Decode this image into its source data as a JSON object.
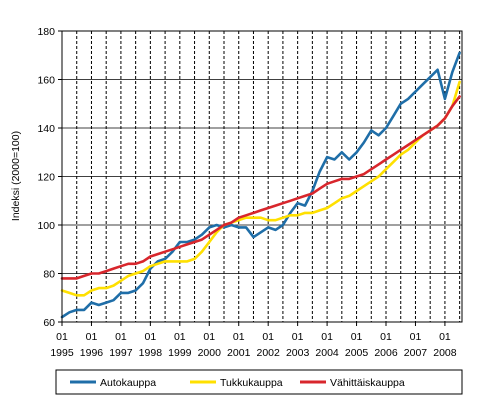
{
  "chart_data": {
    "type": "line",
    "title": "",
    "xlabel": "",
    "ylabel": "Indeksi (2000=100)",
    "ylim": [
      60,
      180
    ],
    "yticks": [
      60,
      80,
      100,
      120,
      140,
      160,
      180
    ],
    "xlim": [
      1995.0,
      2008.58
    ],
    "x_tick_labels": [
      {
        "x": 1995,
        "month": "01",
        "year": "1995"
      },
      {
        "x": 1996,
        "month": "01",
        "year": "1996"
      },
      {
        "x": 1997,
        "month": "01",
        "year": "1997"
      },
      {
        "x": 1998,
        "month": "01",
        "year": "1998"
      },
      {
        "x": 1999,
        "month": "01",
        "year": "1999"
      },
      {
        "x": 2000,
        "month": "01",
        "year": "2000"
      },
      {
        "x": 2001,
        "month": "01",
        "year": "2001"
      },
      {
        "x": 2002,
        "month": "01",
        "year": "2002"
      },
      {
        "x": 2003,
        "month": "01",
        "year": "2003"
      },
      {
        "x": 2004,
        "month": "01",
        "year": "2004"
      },
      {
        "x": 2005,
        "month": "01",
        "year": "2005"
      },
      {
        "x": 2006,
        "month": "01",
        "year": "2006"
      },
      {
        "x": 2007,
        "month": "01",
        "year": "2007"
      },
      {
        "x": 2008,
        "month": "01",
        "year": "2008"
      }
    ],
    "vertical_gridlines": "dashed, one per half-year",
    "horizontal_gridlines": "solid, at each y tick",
    "legend_position": "bottom",
    "series": [
      {
        "name": "Autokauppa",
        "color": "#1f6ea8",
        "x": [
          1995.0,
          1995.25,
          1995.5,
          1995.75,
          1996.0,
          1996.25,
          1996.5,
          1996.75,
          1997.0,
          1997.25,
          1997.5,
          1997.75,
          1998.0,
          1998.25,
          1998.5,
          1998.75,
          1999.0,
          1999.25,
          1999.5,
          1999.75,
          2000.0,
          2000.25,
          2000.5,
          2000.75,
          2001.0,
          2001.25,
          2001.5,
          2001.75,
          2002.0,
          2002.25,
          2002.5,
          2002.75,
          2003.0,
          2003.25,
          2003.5,
          2003.75,
          2004.0,
          2004.25,
          2004.5,
          2004.75,
          2005.0,
          2005.25,
          2005.5,
          2005.75,
          2006.0,
          2006.25,
          2006.5,
          2006.75,
          2007.0,
          2007.25,
          2007.5,
          2007.75,
          2008.0,
          2008.25,
          2008.5
        ],
        "values": [
          62,
          64,
          65,
          65,
          68,
          67,
          68,
          69,
          72,
          72,
          73,
          76,
          82,
          85,
          86,
          89,
          93,
          93,
          94,
          96,
          99,
          100,
          99,
          100,
          99,
          99,
          95,
          97,
          99,
          98,
          100,
          105,
          109,
          108,
          114,
          122,
          128,
          127,
          130,
          127,
          130,
          134,
          139,
          137,
          140,
          145,
          150,
          152,
          155,
          158,
          161,
          164,
          152,
          163,
          171
        ]
      },
      {
        "name": "Tukkukauppa",
        "color": "#ffe000",
        "x": [
          1995.0,
          1995.25,
          1995.5,
          1995.75,
          1996.0,
          1996.25,
          1996.5,
          1996.75,
          1997.0,
          1997.25,
          1997.5,
          1997.75,
          1998.0,
          1998.25,
          1998.5,
          1998.75,
          1999.0,
          1999.25,
          1999.5,
          1999.75,
          2000.0,
          2000.25,
          2000.5,
          2000.75,
          2001.0,
          2001.25,
          2001.5,
          2001.75,
          2002.0,
          2002.25,
          2002.5,
          2002.75,
          2003.0,
          2003.25,
          2003.5,
          2003.75,
          2004.0,
          2004.25,
          2004.5,
          2004.75,
          2005.0,
          2005.25,
          2005.5,
          2005.75,
          2006.0,
          2006.25,
          2006.5,
          2006.75,
          2007.0,
          2007.25,
          2007.5,
          2007.75,
          2008.0,
          2008.25,
          2008.5
        ],
        "values": [
          73,
          72,
          71,
          71,
          73,
          74,
          74,
          75,
          77,
          79,
          80,
          81,
          83,
          84,
          85,
          85,
          85,
          85,
          86,
          89,
          93,
          97,
          100,
          101,
          102,
          103,
          103,
          103,
          102,
          102,
          103,
          104,
          104,
          105,
          105,
          106,
          107,
          109,
          111,
          112,
          114,
          116,
          118,
          120,
          123,
          126,
          129,
          131,
          134,
          137,
          139,
          141,
          144,
          149,
          159
        ]
      },
      {
        "name": "Vähittäiskauppa",
        "color": "#d8262c",
        "x": [
          1995.0,
          1995.25,
          1995.5,
          1995.75,
          1996.0,
          1996.25,
          1996.5,
          1996.75,
          1997.0,
          1997.25,
          1997.5,
          1997.75,
          1998.0,
          1998.25,
          1998.5,
          1998.75,
          1999.0,
          1999.25,
          1999.5,
          1999.75,
          2000.0,
          2000.25,
          2000.5,
          2000.75,
          2001.0,
          2001.25,
          2001.5,
          2001.75,
          2002.0,
          2002.25,
          2002.5,
          2002.75,
          2003.0,
          2003.25,
          2003.5,
          2003.75,
          2004.0,
          2004.25,
          2004.5,
          2004.75,
          2005.0,
          2005.25,
          2005.5,
          2005.75,
          2006.0,
          2006.25,
          2006.5,
          2006.75,
          2007.0,
          2007.25,
          2007.5,
          2007.75,
          2008.0,
          2008.25,
          2008.5
        ],
        "values": [
          78,
          78,
          78,
          79,
          80,
          80,
          81,
          82,
          83,
          84,
          84,
          85,
          87,
          88,
          89,
          90,
          91,
          92,
          93,
          94,
          96,
          98,
          100,
          101,
          103,
          104,
          105,
          106,
          107,
          108,
          109,
          110,
          111,
          112,
          113,
          115,
          117,
          118,
          119,
          119,
          120,
          121,
          123,
          125,
          127,
          129,
          131,
          133,
          135,
          137,
          139,
          141,
          144,
          149,
          153
        ]
      }
    ]
  }
}
